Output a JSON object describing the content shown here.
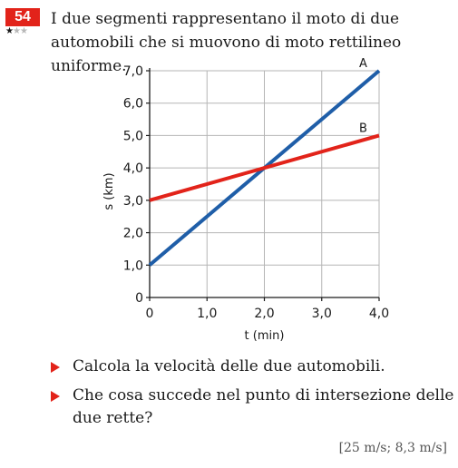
{
  "problem": {
    "number": "54",
    "difficulty": 1,
    "difficulty_max": 3,
    "text": "I due segmenti rappresentano il moto di due automobili che si muovono di moto rettilineo uniforme."
  },
  "chart_data": {
    "type": "line",
    "title": "",
    "xlabel": "t (min)",
    "ylabel": "s (km)",
    "xlim": [
      0,
      4
    ],
    "ylim": [
      0,
      7
    ],
    "x_ticks": [
      "0",
      "1,0",
      "2,0",
      "3,0",
      "4,0"
    ],
    "y_ticks": [
      "0",
      "1,0",
      "2,0",
      "3,0",
      "4,0",
      "5,0",
      "6,0",
      "7,0"
    ],
    "grid": true,
    "series": [
      {
        "name": "A",
        "color": "#1f5ea8",
        "x": [
          0,
          4
        ],
        "y": [
          1.0,
          7.0
        ]
      },
      {
        "name": "B",
        "color": "#e2231a",
        "x": [
          0,
          4
        ],
        "y": [
          3.0,
          5.0
        ]
      }
    ]
  },
  "questions": [
    "Calcola la velocità delle due automobili.",
    "Che cosa succede nel punto di intersezione delle due rette?"
  ],
  "answer": "[25 m/s; 8,3 m/s]"
}
